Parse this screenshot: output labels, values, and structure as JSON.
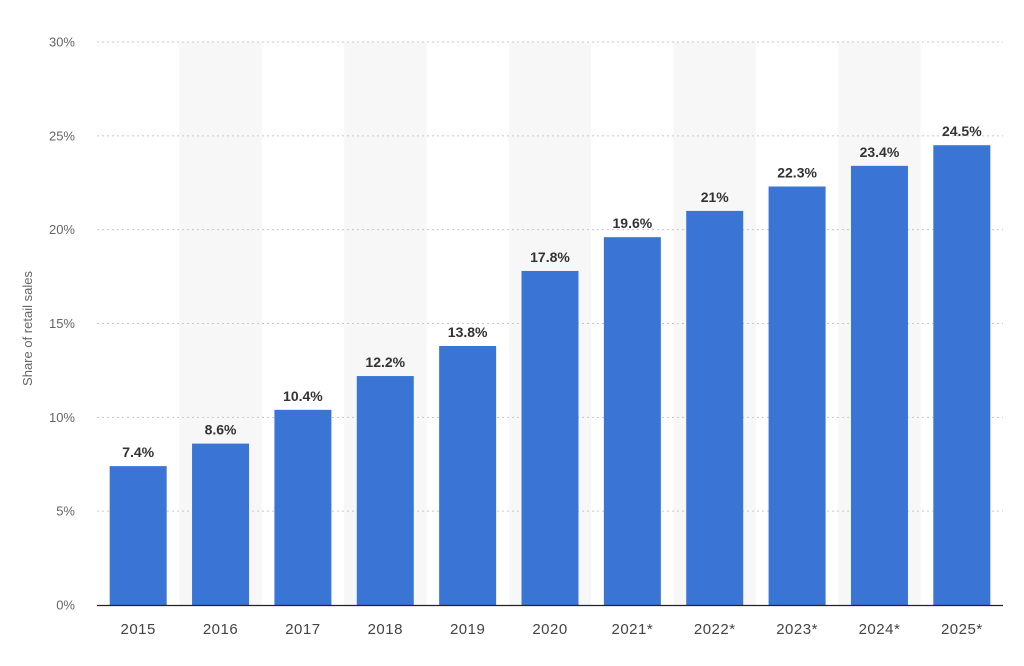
{
  "chart_data": {
    "type": "bar",
    "title": "",
    "xlabel": "",
    "ylabel": "Share of retail sales",
    "categories": [
      "2015",
      "2016",
      "2017",
      "2018",
      "2019",
      "2020",
      "2021*",
      "2022*",
      "2023*",
      "2024*",
      "2025*"
    ],
    "values": [
      7.4,
      8.6,
      10.4,
      12.2,
      13.8,
      17.8,
      19.6,
      21,
      22.3,
      23.4,
      24.5
    ],
    "value_labels": [
      "7.4%",
      "8.6%",
      "10.4%",
      "12.2%",
      "13.8%",
      "17.8%",
      "19.6%",
      "21%",
      "22.3%",
      "23.4%",
      "24.5%"
    ],
    "ylim": [
      0,
      30
    ],
    "yticks": [
      0,
      5,
      10,
      15,
      20,
      25,
      30
    ],
    "ytick_labels": [
      "0%",
      "5%",
      "10%",
      "15%",
      "20%",
      "25%",
      "30%"
    ],
    "grid": true,
    "legend": "none",
    "colors": {
      "bar": "#3a75d6",
      "band": "#f7f7f7",
      "grid": "#c8c8c8"
    }
  }
}
